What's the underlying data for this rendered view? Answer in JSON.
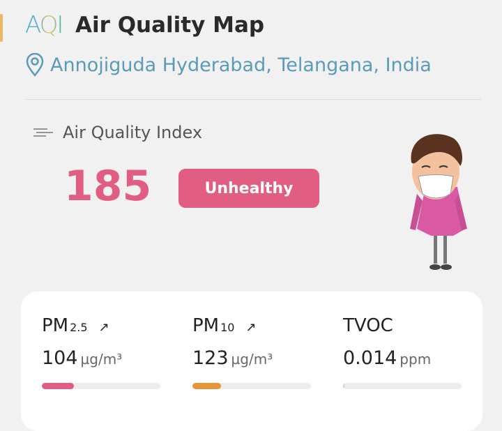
{
  "header": {
    "logo_text": "AQI",
    "title": "Air Quality Map",
    "location": "Annojiguda Hyderabad, Telangana, India"
  },
  "aqi": {
    "label": "Air Quality Index",
    "value": "185",
    "status": "Unhealthy",
    "status_color": "#e25d82"
  },
  "pollutants": [
    {
      "name": "PM",
      "sub": "2.5",
      "trend": "↗",
      "value": "104",
      "unit": "µg/m³",
      "level_percent": 27,
      "color": "#e25d82"
    },
    {
      "name": "PM",
      "sub": "10",
      "trend": "↗",
      "value": "123",
      "unit": "µg/m³",
      "level_percent": 24,
      "color": "#e6963a"
    },
    {
      "name": "TVOC",
      "sub": "",
      "trend": "",
      "value": "0.014",
      "unit": "ppm",
      "level_percent": 1,
      "color": "#cccccc"
    }
  ]
}
